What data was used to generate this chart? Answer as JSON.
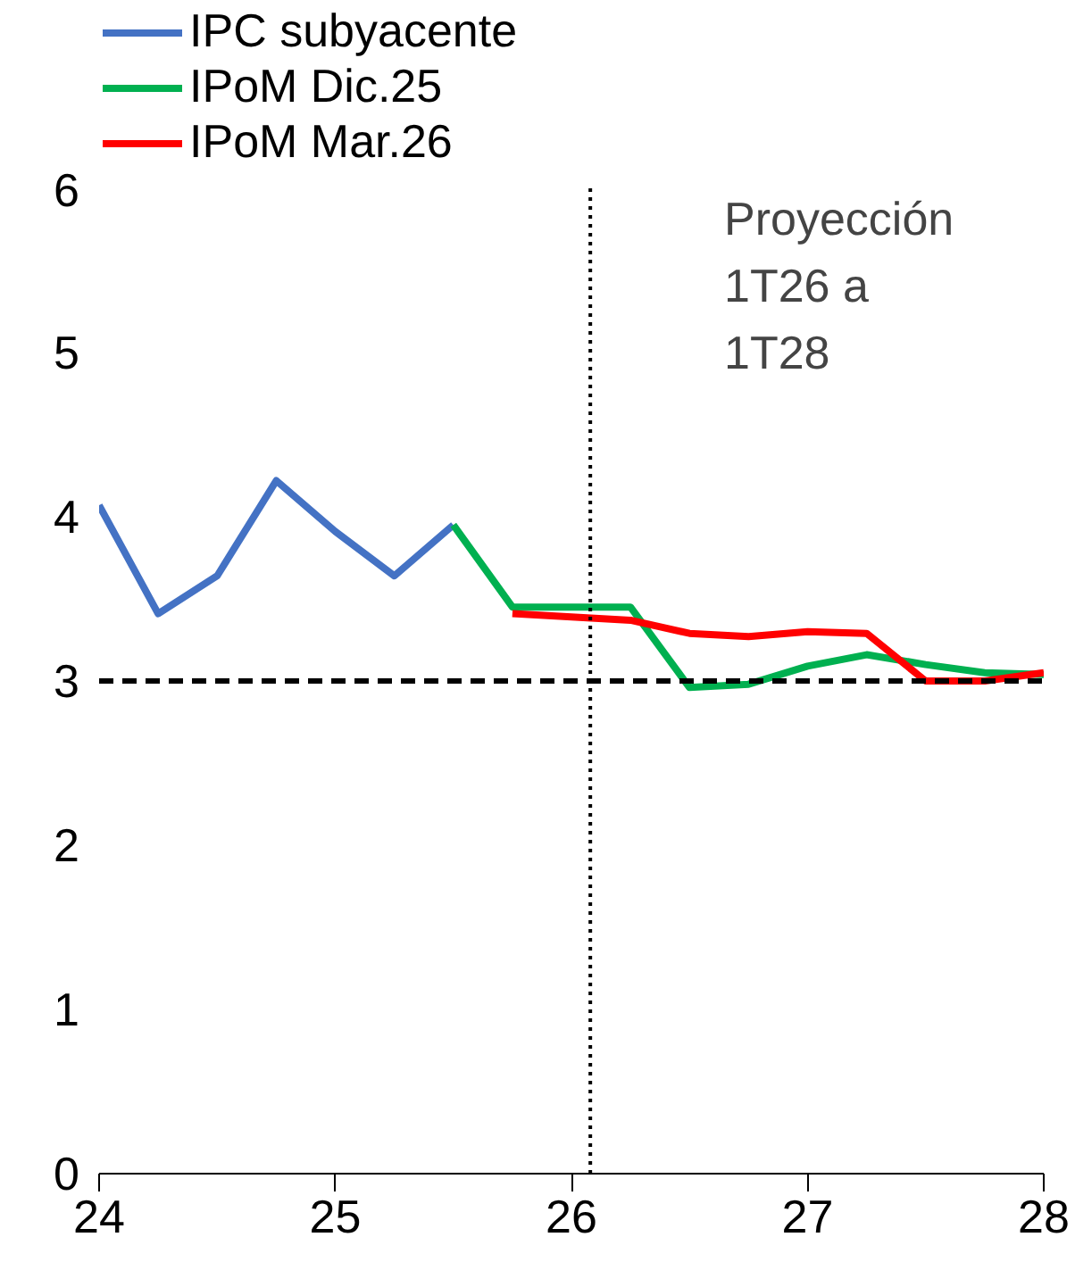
{
  "chart_data": {
    "type": "line",
    "annotations": [
      "Proyección 1T26 a 1T28"
    ],
    "xlim": [
      24,
      28
    ],
    "ylim": [
      0,
      6
    ],
    "xticks": [
      24,
      25,
      26,
      27,
      28
    ],
    "yticks": [
      0,
      1,
      2,
      3,
      4,
      5,
      6
    ],
    "grid": false,
    "legend": "top left",
    "line_style": "solid",
    "marker": "none",
    "series": [
      {
        "name": "IPC subyacente",
        "color": "#4472c4",
        "x": [
          24,
          24.25,
          24.5,
          24.75,
          25,
          25.25,
          25.5
        ],
        "values": [
          4.07,
          3.41,
          3.64,
          4.22,
          3.91,
          3.64,
          3.95
        ]
      },
      {
        "name": "IPoM Dic.25",
        "color": "#00b050",
        "x": [
          25.5,
          25.75,
          26,
          26.25,
          26.5,
          26.75,
          27,
          27.25,
          27.5,
          27.75,
          28
        ],
        "values": [
          3.95,
          3.45,
          3.45,
          3.45,
          2.96,
          2.98,
          3.09,
          3.16,
          3.1,
          3.05,
          3.04
        ]
      },
      {
        "name": "IPoM Mar.26",
        "color": "#ff0000",
        "x": [
          25.75,
          26,
          26.25,
          26.5,
          26.75,
          27,
          27.25,
          27.5,
          27.75,
          28
        ],
        "values": [
          3.41,
          3.39,
          3.37,
          3.29,
          3.27,
          3.3,
          3.29,
          3.0,
          3.0,
          3.05
        ]
      }
    ],
    "ref_lines": [
      {
        "axis": "y",
        "value": 3,
        "color": "#000000",
        "line_style": "dashed"
      },
      {
        "axis": "x",
        "value": 26.08,
        "color": "#000000",
        "line_style": "dotted"
      }
    ]
  }
}
